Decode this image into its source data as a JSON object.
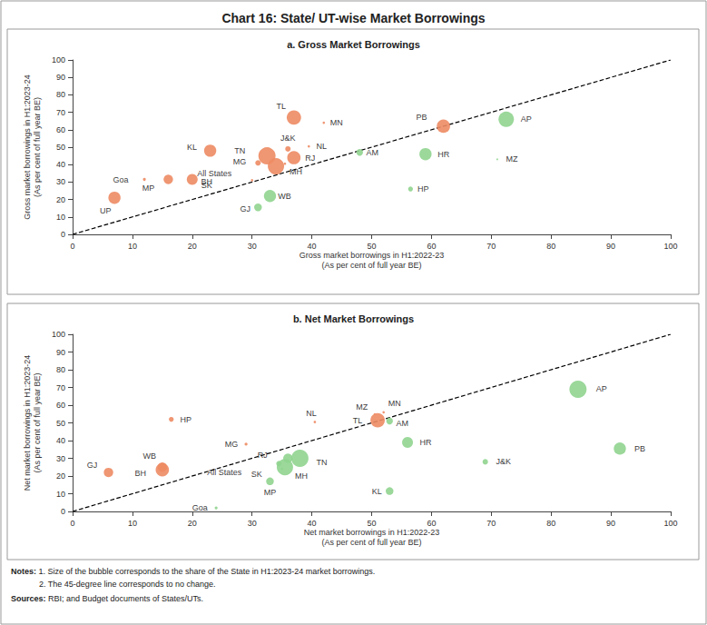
{
  "page": {
    "title": "Chart 16: State/ UT-wise Market Borrowings",
    "notes": {
      "heading": "Notes:",
      "items": [
        "1. Size of the bubble corresponds to the share of the State in H1:2023-24 market borrowings.",
        "2. The 45-degree line corresponds to no change."
      ]
    },
    "sources": {
      "heading": "Sources:",
      "text": "RBI; and Budget documents of States/UTs."
    }
  },
  "chart_data": [
    {
      "type": "scatter",
      "title": "a. Gross Market Borrowings",
      "x_label": [
        "Gross market borrowings in H1:2022-23",
        "(As per cent of full year BE)"
      ],
      "y_label": [
        "Gross market borrowings in H1:2023-24",
        "(As per cent of full year BE)"
      ],
      "xlim": [
        0,
        100
      ],
      "ylim": [
        0,
        100
      ],
      "xticks": [
        0,
        10,
        20,
        30,
        40,
        50,
        60,
        70,
        80,
        90,
        100
      ],
      "yticks": [
        0,
        10,
        20,
        30,
        40,
        50,
        60,
        70,
        80,
        90,
        100
      ],
      "grid": false,
      "data_labels": true,
      "series": [
        {
          "type": "scatter",
          "labels": [
            "UP",
            "Goa",
            "MP",
            "BH",
            "KL",
            "TN",
            "All States",
            "MG",
            "MH",
            "SK",
            "WB",
            "GJ",
            "TL",
            "MN",
            "J&K",
            "NL",
            "RJ",
            "AM",
            "HR",
            "HP",
            "PB",
            "AP",
            "MZ"
          ],
          "x": [
            7,
            12,
            16,
            20,
            23,
            32.5,
            31,
            35.5,
            34,
            30,
            33,
            31,
            37,
            42,
            36,
            39.5,
            37,
            48,
            59,
            56.5,
            62,
            72.5,
            71
          ],
          "y": [
            21,
            31.5,
            31.5,
            31.5,
            48,
            45,
            41,
            40.5,
            39,
            31,
            22,
            15.5,
            67,
            64,
            49,
            50.5,
            44,
            47,
            46,
            26,
            62,
            66,
            43
          ],
          "size": [
            5,
            0.3,
            3,
            4,
            5,
            10,
            null,
            0.2,
            9,
            0.2,
            5,
            2,
            7,
            0.2,
            1,
            0.2,
            6,
            1.5,
            5,
            0.8,
            6,
            8,
            0.1
          ],
          "colors": [
            "#ED8B63",
            "#ED8B63",
            "#ED8B63",
            "#ED8B63",
            "#ED8B63",
            "#ED8B63",
            "#ED8B63",
            "#ED8B63",
            "#ED8B63",
            "#ED8B63",
            "#90D48F",
            "#90D48F",
            "#ED8B63",
            "#ED8B63",
            "#ED8B63",
            "#ED8B63",
            "#ED8B63",
            "#90D48F",
            "#90D48F",
            "#90D48F",
            "#ED8B63",
            "#90D48F",
            "#90D48F"
          ]
        },
        {
          "type": "line",
          "x": [
            0,
            100
          ],
          "y": [
            0,
            100
          ],
          "line_style": "dashed",
          "color": "#000000"
        }
      ]
    },
    {
      "type": "scatter",
      "title": "b. Net Market Borrowings",
      "x_label": [
        "Net market borrowings in H1:2022-23",
        "(As per cent of full year BE)"
      ],
      "y_label": [
        "Net market borrowings in H1:2023-24",
        "(As per cent of full year BE)"
      ],
      "xlim": [
        0,
        100
      ],
      "ylim": [
        0,
        100
      ],
      "xticks": [
        0,
        10,
        20,
        30,
        40,
        50,
        60,
        70,
        80,
        90,
        100
      ],
      "yticks": [
        0,
        10,
        20,
        30,
        40,
        50,
        60,
        70,
        80,
        90,
        100
      ],
      "grid": false,
      "data_labels": true,
      "series": [
        {
          "type": "scatter",
          "labels": [
            "GJ",
            "WB",
            "BH",
            "HP",
            "Goa",
            "MG",
            "RJ",
            "All States",
            "SK",
            "MH",
            "TN",
            "MP",
            "KL",
            "MZ",
            "MN",
            "TL",
            "NL",
            "AM",
            "HR",
            "J&K",
            "AP",
            "PB"
          ],
          "x": [
            6,
            15,
            15,
            16.5,
            24,
            29,
            36,
            34.5,
            35,
            35.5,
            38,
            33,
            53,
            50.5,
            52,
            51,
            40.5,
            53,
            56,
            69,
            84.5,
            91.5
          ],
          "y": [
            22,
            25,
            23.5,
            52,
            2,
            38,
            30,
            27,
            24,
            25,
            30,
            17,
            11.5,
            55,
            56,
            51.5,
            50.5,
            51,
            39,
            28,
            69,
            35.5
          ],
          "size": [
            3,
            3,
            6,
            0.8,
            0.3,
            0.3,
            3,
            null,
            0.2,
            9,
            10,
            2,
            2,
            0.1,
            0.2,
            7,
            0.2,
            1.5,
            4,
            1,
            10,
            5
          ],
          "colors": [
            "#ED8B63",
            "#ED8B63",
            "#ED8B63",
            "#ED8B63",
            "#90D48F",
            "#ED8B63",
            "#90D48F",
            "#90D48F",
            "#90D48F",
            "#90D48F",
            "#90D48F",
            "#90D48F",
            "#90D48F",
            "#ED8B63",
            "#ED8B63",
            "#ED8B63",
            "#ED8B63",
            "#90D48F",
            "#90D48F",
            "#90D48F",
            "#90D48F",
            "#90D48F"
          ]
        },
        {
          "type": "line",
          "x": [
            0,
            100
          ],
          "y": [
            0,
            100
          ],
          "line_style": "dashed",
          "color": "#000000"
        }
      ]
    }
  ]
}
